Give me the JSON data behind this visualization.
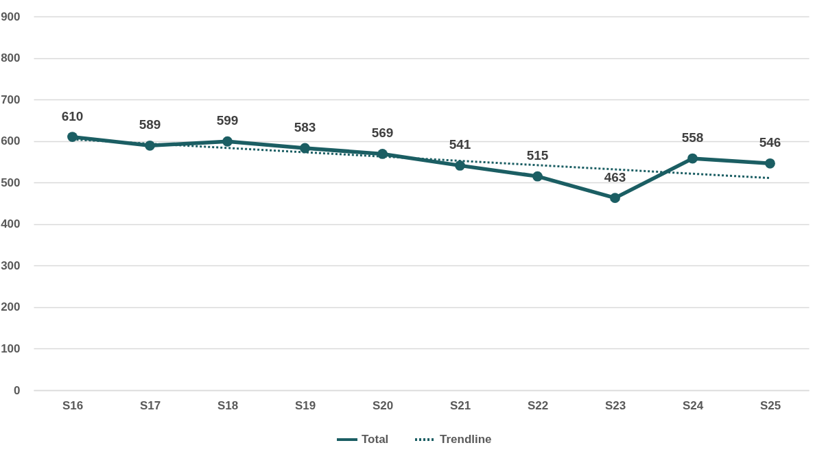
{
  "chart_data": {
    "type": "line",
    "categories": [
      "S16",
      "S17",
      "S18",
      "S19",
      "S20",
      "S21",
      "S22",
      "S23",
      "S24",
      "S25"
    ],
    "series": [
      {
        "name": "Total",
        "color": "#1b5e63",
        "marker": "circle",
        "line_style": "solid",
        "values": [
          610,
          589,
          599,
          583,
          569,
          541,
          515,
          463,
          558,
          546
        ],
        "value_labels": [
          "610",
          "589",
          "599",
          "583",
          "569",
          "541",
          "515",
          "463",
          "558",
          "546"
        ]
      },
      {
        "name": "Trendline",
        "type": "line",
        "color": "#1b5e63",
        "marker": "none",
        "line_style": "dotted",
        "x": [
          "S16",
          "S25"
        ],
        "values": [
          604,
          511
        ]
      }
    ],
    "ylim": [
      0,
      900
    ],
    "yticks": [
      0,
      100,
      200,
      300,
      400,
      500,
      600,
      700,
      800,
      900
    ],
    "grid": "y",
    "legend": "bottom"
  }
}
